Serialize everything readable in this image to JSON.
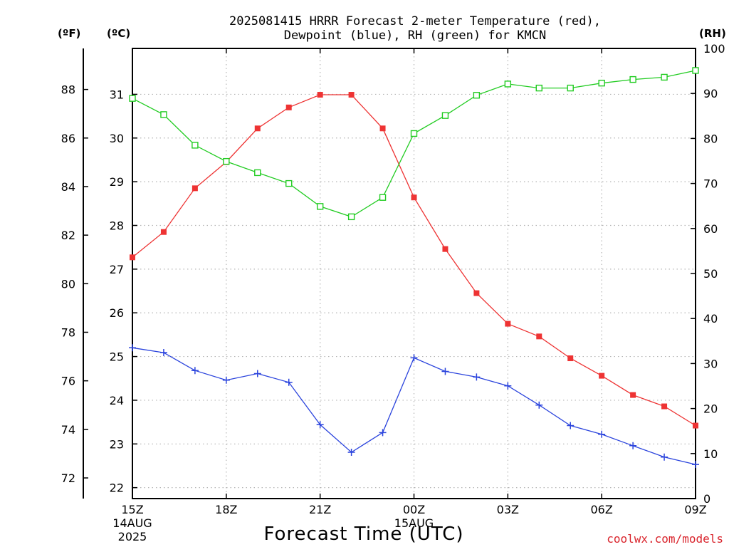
{
  "chart_data": {
    "type": "line",
    "title_lines": [
      "2025081415 HRRR Forecast 2-meter Temperature (red),",
      "Dewpoint (blue), RH (green) for KMCN"
    ],
    "xlabel": "Forecast Time (UTC)",
    "credit": "coolwx.com/models",
    "units": {
      "fahrenheit": "(ºF)",
      "celsius": "(ºC)",
      "rh": "(RH)"
    },
    "x_tick_labels": [
      {
        "hour": 0,
        "lines": [
          "15Z",
          "14AUG",
          "2025"
        ]
      },
      {
        "hour": 3,
        "lines": [
          "18Z"
        ]
      },
      {
        "hour": 6,
        "lines": [
          "21Z"
        ]
      },
      {
        "hour": 9,
        "lines": [
          "00Z",
          "15AUG"
        ]
      },
      {
        "hour": 12,
        "lines": [
          "03Z"
        ]
      },
      {
        "hour": 15,
        "lines": [
          "06Z"
        ]
      },
      {
        "hour": 18,
        "lines": [
          "09Z"
        ]
      }
    ],
    "xlim": [
      0,
      18
    ],
    "celsius_axis": {
      "ylim": [
        21.75,
        32.05
      ],
      "ticks": [
        22,
        23,
        24,
        25,
        26,
        27,
        28,
        29,
        30,
        31
      ]
    },
    "fahrenheit_axis": {
      "ticks": [
        72,
        74,
        76,
        78,
        80,
        82,
        84,
        86,
        88
      ]
    },
    "rh_axis": {
      "ylim": [
        0,
        100
      ],
      "ticks": [
        0,
        10,
        20,
        30,
        40,
        50,
        60,
        70,
        80,
        90,
        100
      ]
    },
    "series": [
      {
        "name": "Temperature",
        "axis": "celsius",
        "color": "#ee3333",
        "marker": "filled-square",
        "values": [
          27.27,
          27.85,
          28.85,
          29.45,
          30.22,
          30.7,
          30.99,
          30.99,
          30.22,
          28.64,
          27.46,
          26.45,
          25.75,
          25.46,
          24.96,
          24.56,
          24.12,
          23.86,
          23.42
        ]
      },
      {
        "name": "Dewpoint",
        "axis": "celsius",
        "color": "#2b44dd",
        "marker": "plus",
        "values": [
          25.2,
          25.09,
          24.68,
          24.46,
          24.61,
          24.41,
          23.44,
          22.81,
          23.26,
          24.97,
          24.66,
          24.53,
          24.33,
          23.89,
          23.42,
          23.22,
          22.96,
          22.7,
          22.53
        ]
      },
      {
        "name": "RH",
        "axis": "rh",
        "color": "#22cc22",
        "marker": "open-square",
        "values": [
          88.9,
          85.3,
          78.5,
          74.9,
          72.4,
          70.0,
          64.9,
          62.6,
          66.9,
          81.1,
          85.1,
          89.6,
          92.1,
          91.2,
          91.2,
          92.3,
          93.1,
          93.6,
          95.1
        ]
      }
    ]
  }
}
